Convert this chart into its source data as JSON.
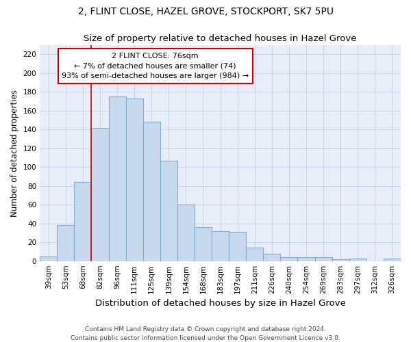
{
  "title": "2, FLINT CLOSE, HAZEL GROVE, STOCKPORT, SK7 5PU",
  "subtitle": "Size of property relative to detached houses in Hazel Grove",
  "xlabel": "Distribution of detached houses by size in Hazel Grove",
  "ylabel": "Number of detached properties",
  "categories": [
    "39sqm",
    "53sqm",
    "68sqm",
    "82sqm",
    "96sqm",
    "111sqm",
    "125sqm",
    "139sqm",
    "154sqm",
    "168sqm",
    "183sqm",
    "197sqm",
    "211sqm",
    "226sqm",
    "240sqm",
    "254sqm",
    "269sqm",
    "283sqm",
    "297sqm",
    "312sqm",
    "326sqm"
  ],
  "values": [
    5,
    38,
    84,
    142,
    175,
    173,
    148,
    107,
    60,
    36,
    32,
    31,
    14,
    8,
    4,
    4,
    4,
    2,
    3,
    0,
    3
  ],
  "bar_color": "#c8d9ed",
  "bar_edge_color": "#7aaed4",
  "grid_color": "#c8d4e8",
  "background_color": "#e8eef8",
  "annotation_text": "2 FLINT CLOSE: 76sqm\n← 7% of detached houses are smaller (74)\n93% of semi-detached houses are larger (984) →",
  "vline_x": 2.5,
  "vline_color": "#cc0000",
  "annotation_box_facecolor": "#ffffff",
  "annotation_box_edgecolor": "#cc0000",
  "ylim": [
    0,
    230
  ],
  "yticks": [
    0,
    20,
    40,
    60,
    80,
    100,
    120,
    140,
    160,
    180,
    200,
    220
  ],
  "footnote": "Contains HM Land Registry data © Crown copyright and database right 2024.\nContains public sector information licensed under the Open Government Licence v3.0.",
  "title_fontsize": 10,
  "subtitle_fontsize": 9.5,
  "xlabel_fontsize": 9.5,
  "ylabel_fontsize": 8.5,
  "tick_fontsize": 7.5,
  "annotation_fontsize": 8,
  "footnote_fontsize": 6.5
}
